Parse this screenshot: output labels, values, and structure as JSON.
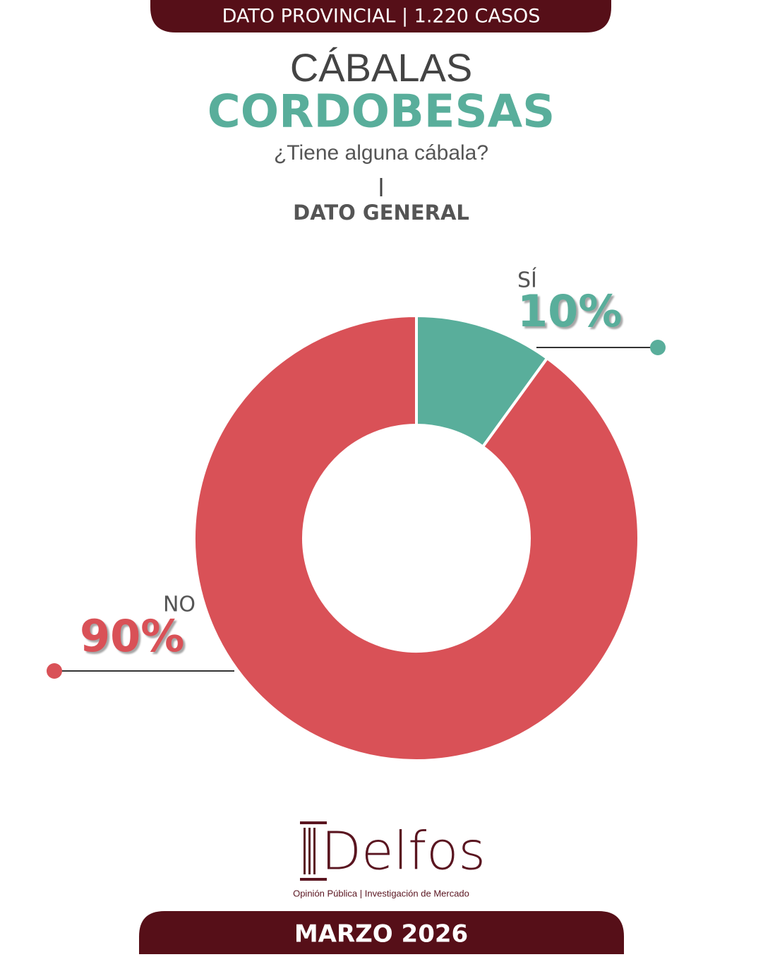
{
  "chart_data": {
    "type": "donut",
    "header": "DATO PROVINCIAL | 1.220 CASOS",
    "title": "CÁBALAS",
    "title_highlight": "CORDOBESAS",
    "subtitle": "¿Tiene alguna cábala?",
    "section_label": "DATO GENERAL",
    "categories": [
      "SÍ",
      "NO"
    ],
    "values": [
      10,
      90
    ],
    "value_labels": [
      "10%",
      "90%"
    ],
    "colors": [
      "#59ae9b",
      "#d95157"
    ]
  },
  "footer": {
    "brand": "Delfos",
    "tagline": "Opinión Pública | Investigación de Mercado",
    "date": "MARZO 2026"
  }
}
